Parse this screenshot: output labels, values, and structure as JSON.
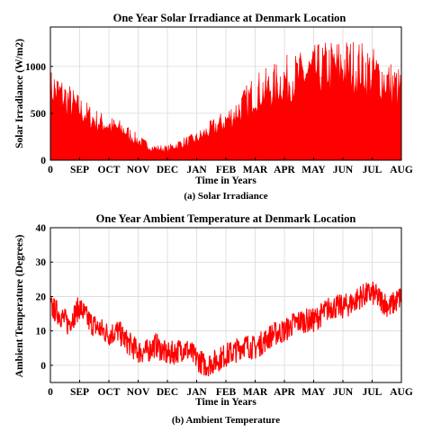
{
  "chart_data": [
    {
      "type": "area",
      "title": "One Year Solar Irradiance at Denmark Location",
      "xlabel": "Time in Years",
      "ylabel": "Solar Irradiance (W/m2)",
      "caption": "(a) Solar Irradiance",
      "color": "#ff0000",
      "x_tick_labels": [
        "0",
        "SEP",
        "OCT",
        "NOV",
        "DEC",
        "JAN",
        "FEB",
        "MAR",
        "APR",
        "MAY",
        "JUN",
        "JUL",
        "AUG"
      ],
      "yticks": [
        0,
        500,
        1000
      ],
      "ylim": [
        0,
        1420
      ],
      "grid": true,
      "envelope": {
        "month_index": [
          0,
          0.1,
          0.5,
          1,
          1.5,
          2,
          2.5,
          3,
          3.5,
          4,
          4.5,
          5,
          5.5,
          6,
          6.5,
          7,
          7.5,
          8,
          8.5,
          9,
          9.5,
          10,
          10.5,
          11,
          11.5,
          12
        ],
        "daily_peak": [
          960,
          990,
          870,
          700,
          560,
          480,
          420,
          270,
          170,
          160,
          240,
          300,
          430,
          550,
          720,
          940,
          1000,
          1120,
          1160,
          1230,
          1290,
          1320,
          1300,
          1220,
          1100,
          980
        ]
      }
    },
    {
      "type": "line",
      "title": "One Year Ambient Temperature at Denmark Location",
      "xlabel": "Time in Years",
      "ylabel": "Ambient Temperature (Degrees)",
      "caption": "(b) Ambient Temperature",
      "color": "#ff0000",
      "x_tick_labels": [
        "0",
        "SEP",
        "OCT",
        "NOV",
        "DEC",
        "JAN",
        "FEB",
        "MAR",
        "APR",
        "MAY",
        "JUN",
        "JUL",
        "AUG"
      ],
      "yticks": [
        0,
        10,
        20,
        30,
        40
      ],
      "ylim": [
        -5,
        40
      ],
      "grid": true,
      "series": [
        {
          "month_index": [
            0,
            0.3,
            0.6,
            1,
            1.3,
            1.6,
            2,
            2.3,
            2.6,
            3,
            3.3,
            3.6,
            4,
            4.3,
            4.6,
            5,
            5.3,
            5.6,
            6,
            6.3,
            6.6,
            7,
            7.3,
            7.6,
            8,
            8.3,
            8.6,
            9,
            9.3,
            9.6,
            10,
            10.3,
            10.6,
            11,
            11.3,
            11.6,
            12
          ],
          "temperature": [
            17,
            15,
            12,
            17,
            13,
            11,
            9,
            10,
            7,
            4,
            4,
            6,
            3,
            4,
            5,
            2,
            0,
            1,
            3,
            4,
            6,
            5,
            7,
            9,
            10,
            12,
            13,
            13,
            15,
            17,
            17,
            18,
            20,
            21,
            19,
            17,
            20
          ]
        }
      ]
    }
  ]
}
